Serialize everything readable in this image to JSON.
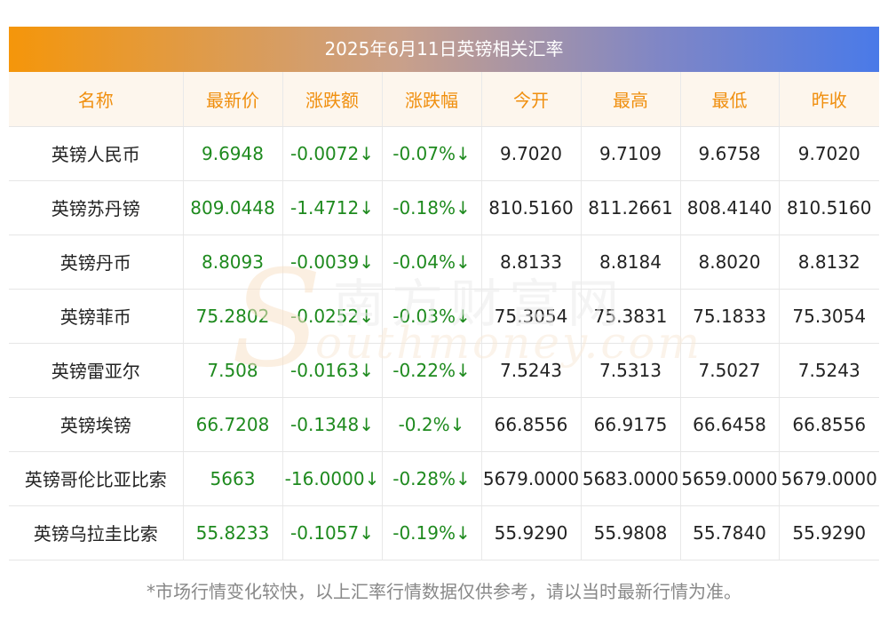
{
  "title": "2025年6月11日英镑相关汇率",
  "columns": [
    "名称",
    "最新价",
    "涨跌额",
    "涨跌幅",
    "今开",
    "最高",
    "最低",
    "昨收"
  ],
  "rows": [
    [
      "英镑人民币",
      "9.6948",
      "-0.0072↓",
      "-0.07%↓",
      "9.7020",
      "9.7109",
      "9.6758",
      "9.7020"
    ],
    [
      "英镑苏丹镑",
      "809.0448",
      "-1.4712↓",
      "-0.18%↓",
      "810.5160",
      "811.2661",
      "808.4140",
      "810.5160"
    ],
    [
      "英镑丹币",
      "8.8093",
      "-0.0039↓",
      "-0.04%↓",
      "8.8133",
      "8.8184",
      "8.8020",
      "8.8132"
    ],
    [
      "英镑菲币",
      "75.2802",
      "-0.0252↓",
      "-0.03%↓",
      "75.3054",
      "75.3831",
      "75.1833",
      "75.3054"
    ],
    [
      "英镑雷亚尔",
      "7.508",
      "-0.0163↓",
      "-0.22%↓",
      "7.5243",
      "7.5313",
      "7.5027",
      "7.5243"
    ],
    [
      "英镑埃镑",
      "66.7208",
      "-0.1348↓",
      "-0.2%↓",
      "66.8556",
      "66.9175",
      "66.6458",
      "66.8556"
    ],
    [
      "英镑哥伦比亚比索",
      "5663",
      "-16.0000↓",
      "-0.28%↓",
      "5679.0000",
      "5683.0000",
      "5659.0000",
      "5679.0000"
    ],
    [
      "英镑乌拉圭比索",
      "55.8233",
      "-0.1057↓",
      "-0.19%↓",
      "55.9290",
      "55.9808",
      "55.7840",
      "55.9290"
    ]
  ],
  "watermark": {
    "s_letter": "S",
    "chinese": "南方财富网",
    "english": "outhmoney.com"
  },
  "note": "*市场行情变化较快，以上汇率行情数据仅供参考，请以当时最新行情为准。",
  "colors": {
    "header_text": "#f08f0e",
    "change_text": "#1e8a1e",
    "banner_start": "#f5960a",
    "banner_end": "#4a7ae8"
  }
}
